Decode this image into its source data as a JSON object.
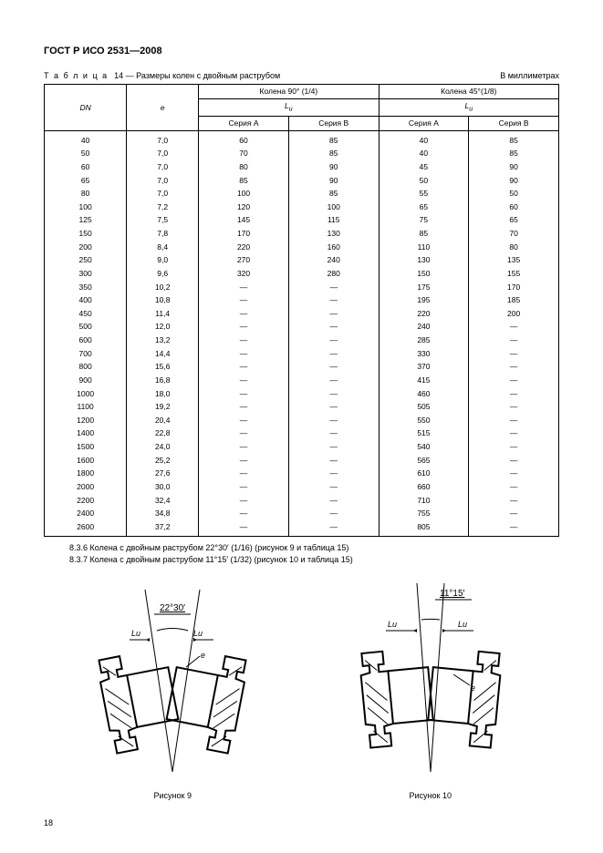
{
  "doc_title": "ГОСТ Р ИСО 2531—2008",
  "table_caption_prefix": "Т а б л и ц а",
  "table_number": "14",
  "table_caption_text": "— Размеры колен с двойным раструбом",
  "units_label": "В миллиметрах",
  "header": {
    "dn": "DN",
    "e": "e",
    "col90": "Колена 90° (1/4)",
    "col45": "Колена 45°(1/8)",
    "lu": "L",
    "lu_sub": "u",
    "seriesA": "Серия А",
    "seriesB": "Серия В"
  },
  "rows": [
    {
      "dn": "40",
      "e": "7,0",
      "a90": "60",
      "b90": "85",
      "a45": "40",
      "b45": "85"
    },
    {
      "dn": "50",
      "e": "7,0",
      "a90": "70",
      "b90": "85",
      "a45": "40",
      "b45": "85"
    },
    {
      "dn": "60",
      "e": "7,0",
      "a90": "80",
      "b90": "90",
      "a45": "45",
      "b45": "90"
    },
    {
      "dn": "65",
      "e": "7,0",
      "a90": "85",
      "b90": "90",
      "a45": "50",
      "b45": "90"
    },
    {
      "dn": "80",
      "e": "7,0",
      "a90": "100",
      "b90": "85",
      "a45": "55",
      "b45": "50"
    },
    {
      "dn": "100",
      "e": "7,2",
      "a90": "120",
      "b90": "100",
      "a45": "65",
      "b45": "60"
    },
    {
      "dn": "125",
      "e": "7,5",
      "a90": "145",
      "b90": "115",
      "a45": "75",
      "b45": "65"
    },
    {
      "dn": "150",
      "e": "7,8",
      "a90": "170",
      "b90": "130",
      "a45": "85",
      "b45": "70"
    },
    {
      "dn": "200",
      "e": "8,4",
      "a90": "220",
      "b90": "160",
      "a45": "110",
      "b45": "80"
    },
    {
      "dn": "250",
      "e": "9,0",
      "a90": "270",
      "b90": "240",
      "a45": "130",
      "b45": "135"
    },
    {
      "dn": "300",
      "e": "9,6",
      "a90": "320",
      "b90": "280",
      "a45": "150",
      "b45": "155"
    },
    {
      "dn": "350",
      "e": "10,2",
      "a90": "—",
      "b90": "—",
      "a45": "175",
      "b45": "170"
    },
    {
      "dn": "400",
      "e": "10,8",
      "a90": "—",
      "b90": "—",
      "a45": "195",
      "b45": "185"
    },
    {
      "dn": "450",
      "e": "11,4",
      "a90": "—",
      "b90": "—",
      "a45": "220",
      "b45": "200"
    },
    {
      "dn": "500",
      "e": "12,0",
      "a90": "—",
      "b90": "—",
      "a45": "240",
      "b45": "—"
    },
    {
      "dn": "600",
      "e": "13,2",
      "a90": "—",
      "b90": "—",
      "a45": "285",
      "b45": "—"
    },
    {
      "dn": "700",
      "e": "14,4",
      "a90": "—",
      "b90": "—",
      "a45": "330",
      "b45": "—"
    },
    {
      "dn": "800",
      "e": "15,6",
      "a90": "—",
      "b90": "—",
      "a45": "370",
      "b45": "—"
    },
    {
      "dn": "900",
      "e": "16,8",
      "a90": "—",
      "b90": "—",
      "a45": "415",
      "b45": "—"
    },
    {
      "dn": "1000",
      "e": "18,0",
      "a90": "—",
      "b90": "—",
      "a45": "460",
      "b45": "—"
    },
    {
      "dn": "1100",
      "e": "19,2",
      "a90": "—",
      "b90": "—",
      "a45": "505",
      "b45": "—"
    },
    {
      "dn": "1200",
      "e": "20,4",
      "a90": "—",
      "b90": "—",
      "a45": "550",
      "b45": "—"
    },
    {
      "dn": "1400",
      "e": "22,8",
      "a90": "—",
      "b90": "—",
      "a45": "515",
      "b45": "—"
    },
    {
      "dn": "1500",
      "e": "24,0",
      "a90": "—",
      "b90": "—",
      "a45": "540",
      "b45": "—"
    },
    {
      "dn": "1600",
      "e": "25,2",
      "a90": "—",
      "b90": "—",
      "a45": "565",
      "b45": "—"
    },
    {
      "dn": "1800",
      "e": "27,6",
      "a90": "—",
      "b90": "—",
      "a45": "610",
      "b45": "—"
    },
    {
      "dn": "2000",
      "e": "30,0",
      "a90": "—",
      "b90": "—",
      "a45": "660",
      "b45": "—"
    },
    {
      "dn": "2200",
      "e": "32,4",
      "a90": "—",
      "b90": "—",
      "a45": "710",
      "b45": "—"
    },
    {
      "dn": "2400",
      "e": "34,8",
      "a90": "—",
      "b90": "—",
      "a45": "755",
      "b45": "—"
    },
    {
      "dn": "2600",
      "e": "37,2",
      "a90": "—",
      "b90": "—",
      "a45": "805",
      "b45": "—"
    }
  ],
  "notes": [
    "8.3.6  Колена с двойным раструбом 22°30′ (1/16) (рисунок 9 и таблица 15)",
    "8.3.7  Колена с двойным раструбом 11°15′ (1/32) (рисунок 10 и таблица 15)"
  ],
  "figures": {
    "fig9": {
      "angle_label": "22°30′",
      "lu_label": "Lu",
      "caption": "Рисунок 9"
    },
    "fig10": {
      "angle_label": "11°15′",
      "lu_label": "Lu",
      "caption": "Рисунок 10"
    }
  },
  "page_number": "18"
}
